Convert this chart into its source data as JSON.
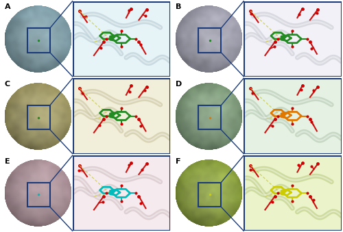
{
  "figure_width": 5.0,
  "figure_height": 3.39,
  "dpi": 100,
  "background_color": "#ffffff",
  "panels": [
    {
      "label": "A",
      "row": 0,
      "col": 0,
      "protein_color_rgb": [
        173,
        216,
        230
      ],
      "zoom_bg_rgb": [
        200,
        225,
        235
      ],
      "compound_color": "#228B22",
      "line_color": "#00aa00"
    },
    {
      "label": "B",
      "row": 0,
      "col": 1,
      "protein_color_rgb": [
        210,
        210,
        230
      ],
      "zoom_bg_rgb": [
        225,
        225,
        240
      ],
      "compound_color": "#228B22",
      "line_color": "#00aa00"
    },
    {
      "label": "C",
      "row": 1,
      "col": 0,
      "protein_color_rgb": [
        210,
        200,
        130
      ],
      "zoom_bg_rgb": [
        230,
        220,
        160
      ],
      "compound_color": "#228B22",
      "line_color": "#00aa00"
    },
    {
      "label": "D",
      "row": 1,
      "col": 1,
      "protein_color_rgb": [
        170,
        210,
        165
      ],
      "zoom_bg_rgb": [
        190,
        230,
        185
      ],
      "compound_color": "#e07800",
      "line_color": "#e07800"
    },
    {
      "label": "E",
      "row": 2,
      "col": 0,
      "protein_color_rgb": [
        225,
        190,
        200
      ],
      "zoom_bg_rgb": [
        240,
        210,
        220
      ],
      "compound_color": "#00bbbb",
      "line_color": "#00bbbb"
    },
    {
      "label": "F",
      "row": 2,
      "col": 1,
      "protein_color_rgb": [
        185,
        215,
        80
      ],
      "zoom_bg_rgb": [
        200,
        230,
        100
      ],
      "compound_color": "#cccc00",
      "line_color": "#aaaa00"
    }
  ],
  "border_color": "#1a3a7a",
  "label_fontsize": 8,
  "label_fontweight": "bold",
  "n_rows": 3,
  "n_cols": 2
}
